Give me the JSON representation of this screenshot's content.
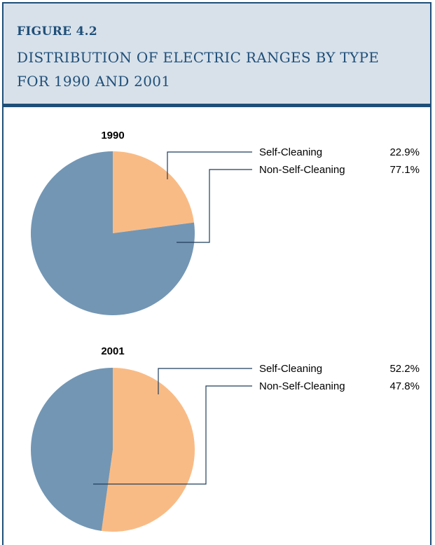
{
  "header": {
    "label": "FIGURE 4.2",
    "title_line1": "DISTRIBUTION OF ELECTRIC RANGES BY TYPE",
    "title_line2": "FOR 1990 AND 2001"
  },
  "chart_data": [
    {
      "type": "pie",
      "title": "1990",
      "start": "12 o'clock",
      "direction": "clockwise",
      "slices": [
        {
          "label": "Self-Cleaning",
          "value": 22.9,
          "display": "22.9%",
          "color": "#f9bb85"
        },
        {
          "label": "Non-Self-Cleaning",
          "value": 77.1,
          "display": "77.1%",
          "color": "#7396b4"
        }
      ]
    },
    {
      "type": "pie",
      "title": "2001",
      "start": "12 o'clock",
      "direction": "clockwise",
      "slices": [
        {
          "label": "Self-Cleaning",
          "value": 52.2,
          "display": "52.2%",
          "color": "#f9bb85"
        },
        {
          "label": "Non-Self-Cleaning",
          "value": 47.8,
          "display": "47.8%",
          "color": "#7396b4"
        }
      ]
    }
  ]
}
